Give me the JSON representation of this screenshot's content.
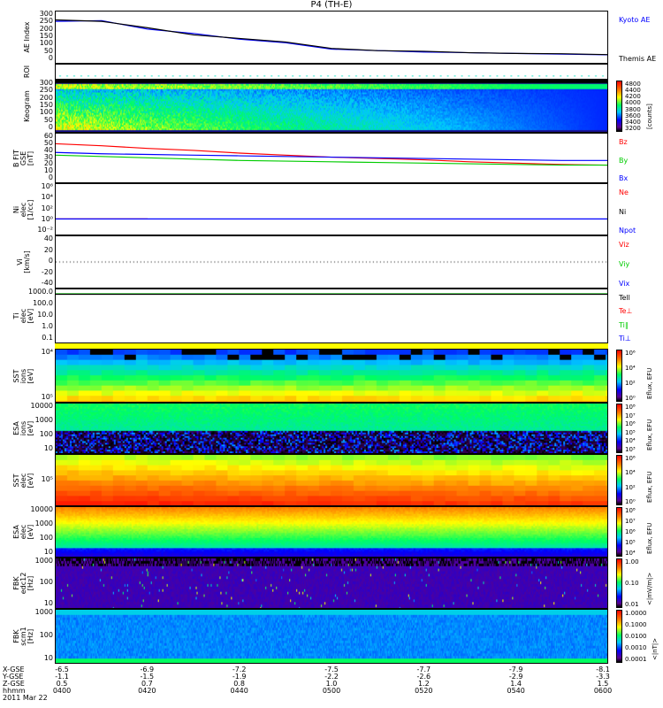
{
  "title": "P4 (TH-E)",
  "panels": [
    {
      "id": "ae",
      "label": [
        "AE Index"
      ],
      "yticks": [
        "300",
        "250",
        "200",
        "150",
        "100",
        "50",
        "0"
      ],
      "legend": [
        {
          "text": "Kyoto AE",
          "color": "#0000ff"
        },
        {
          "text": "Themis AE",
          "color": "#000000"
        }
      ]
    },
    {
      "id": "roi",
      "label": [
        "ROI"
      ],
      "yticks": [],
      "legend": []
    },
    {
      "id": "keo",
      "label": [
        "Keogram"
      ],
      "yticks": [
        "300",
        "250",
        "200",
        "150",
        "100",
        "50",
        "0"
      ],
      "legend": [],
      "colorbar": {
        "ticks": [
          "4800",
          "4400",
          "4200",
          "4000",
          "3800",
          "3600",
          "3400",
          "3200"
        ],
        "unit": "[counts]"
      }
    },
    {
      "id": "bfit",
      "label": [
        "B FIT",
        "GSE",
        "[nT]"
      ],
      "yticks": [
        "60",
        "50",
        "40",
        "30",
        "20",
        "10",
        "0"
      ],
      "legend": [
        {
          "text": "Bz",
          "color": "#ff0000"
        },
        {
          "text": "By",
          "color": "#00cc00"
        },
        {
          "text": "Bx",
          "color": "#0000ff"
        }
      ]
    },
    {
      "id": "ni",
      "label": [
        "Ni",
        "elec",
        "[1/cc]"
      ],
      "yticks": [
        "10⁶",
        "10⁴",
        "10²",
        "10⁰",
        "10⁻²"
      ],
      "legend": [
        {
          "text": "Ne",
          "color": "#ff0000"
        },
        {
          "text": "Ni",
          "color": "#000000"
        },
        {
          "text": "Npot",
          "color": "#0000ff"
        }
      ]
    },
    {
      "id": "vi",
      "label": [
        "Vi",
        "[km/s]"
      ],
      "yticks": [
        "40",
        "20",
        "0",
        "-20",
        "-40"
      ],
      "legend": [
        {
          "text": "Viz",
          "color": "#ff0000"
        },
        {
          "text": "Viy",
          "color": "#00cc00"
        },
        {
          "text": "Vix",
          "color": "#0000ff"
        }
      ]
    },
    {
      "id": "t",
      "label": [
        "Ti",
        "elec",
        "[eV]"
      ],
      "yticks": [
        "1000.0",
        "100.0",
        "10.0",
        "1.0",
        "0.1"
      ],
      "legend": [
        {
          "text": "Tell",
          "color": "#000000"
        },
        {
          "text": "Te⊥",
          "color": "#ff0000"
        },
        {
          "text": "Ti∥",
          "color": "#00cc00"
        },
        {
          "text": "Ti⊥",
          "color": "#0000ff"
        }
      ]
    },
    {
      "id": "ssti",
      "label": [
        "SST",
        "ions",
        "[eV]"
      ],
      "yticks": [
        "10⁴",
        "10⁵"
      ],
      "legend": [],
      "colorbar": {
        "ticks": [
          "10⁶",
          "10⁴",
          "10²",
          "10⁰"
        ],
        "unit": "Eflux, EFU"
      }
    },
    {
      "id": "esai",
      "label": [
        "ESA",
        "ions",
        "[eV]"
      ],
      "yticks": [
        "10000",
        "1000",
        "100",
        "10"
      ],
      "legend": [],
      "colorbar": {
        "ticks": [
          "10⁸",
          "10⁷",
          "10⁶",
          "10⁵",
          "10⁴",
          "10³"
        ],
        "unit": "Eflux, EFU"
      }
    },
    {
      "id": "sste",
      "label": [
        "SST",
        "elec",
        "[eV]"
      ],
      "yticks": [
        "10⁵"
      ],
      "legend": [],
      "colorbar": {
        "ticks": [
          "10⁶",
          "10⁴",
          "10²",
          "10⁰"
        ],
        "unit": "Eflux, EFU"
      }
    },
    {
      "id": "esae",
      "label": [
        "ESA",
        "elec",
        "[eV]"
      ],
      "yticks": [
        "10000",
        "1000",
        "100",
        "10"
      ],
      "legend": [],
      "colorbar": {
        "ticks": [
          "10⁸",
          "10⁷",
          "10⁶",
          "10⁵",
          "10⁴"
        ],
        "unit": "Eflux, EFU"
      }
    },
    {
      "id": "fbke",
      "label": [
        "FBK",
        "edc12",
        "[Hz]"
      ],
      "yticks": [
        "1000",
        "100",
        "10"
      ],
      "legend": [],
      "colorbar": {
        "ticks": [
          "1.00",
          "0.10",
          "0.01"
        ],
        "unit": "<|mV/m|>"
      }
    },
    {
      "id": "fbks",
      "label": [
        "FBK",
        "scm1",
        "[Hz]"
      ],
      "yticks": [
        "1000",
        "100",
        "10"
      ],
      "legend": [],
      "colorbar": {
        "ticks": [
          "1.0000",
          "0.1000",
          "0.0100",
          "0.0010",
          "0.0001"
        ],
        "unit": "<|nT|>"
      }
    }
  ],
  "xaxis": {
    "row_labels": [
      "X-GSE",
      "Y-GSE",
      "Z-GSE",
      "hhmm"
    ],
    "date": "2011 Mar 22",
    "ticks": [
      {
        "x": "-6.5",
        "y": "-1.1",
        "z": "0.5",
        "t": "0400"
      },
      {
        "x": "-6.9",
        "y": "-1.5",
        "z": "0.7",
        "t": "0420"
      },
      {
        "x": "-7.2",
        "y": "-1.9",
        "z": "0.8",
        "t": "0440"
      },
      {
        "x": "-7.5",
        "y": "-2.2",
        "z": "1.0",
        "t": "0500"
      },
      {
        "x": "-7.7",
        "y": "-2.6",
        "z": "1.2",
        "t": "0520"
      },
      {
        "x": "-7.9",
        "y": "-2.9",
        "z": "1.4",
        "t": "0540"
      },
      {
        "x": "-8.1",
        "y": "-3.3",
        "z": "1.5",
        "t": "0600"
      }
    ]
  },
  "chart_data": {
    "type": "line",
    "title": "P4 (TH-E)",
    "x_minutes_since_0400": [
      0,
      10,
      20,
      30,
      40,
      50,
      60,
      70,
      80,
      90,
      100,
      110,
      120
    ],
    "series": [
      {
        "panel": "ae",
        "name": "Kyoto AE",
        "color": "#0000ff",
        "range": [
          0,
          300
        ],
        "values": [
          255,
          260,
          200,
          170,
          130,
          105,
          60,
          50,
          40,
          35,
          30,
          25,
          20
        ]
      },
      {
        "panel": "ae",
        "name": "Themis AE",
        "color": "#000000",
        "range": [
          0,
          300
        ],
        "values": [
          265,
          255,
          210,
          160,
          135,
          110,
          65,
          50,
          45,
          35,
          30,
          28,
          22
        ]
      },
      {
        "panel": "bfit",
        "name": "Bz",
        "color": "#ff0000",
        "range": [
          0,
          60
        ],
        "values": [
          50,
          47,
          43,
          40,
          36,
          33,
          30,
          28,
          26,
          23,
          21,
          19,
          18
        ]
      },
      {
        "panel": "bfit",
        "name": "By",
        "color": "#00cc00",
        "range": [
          0,
          60
        ],
        "values": [
          33,
          31,
          29,
          27,
          25,
          24,
          23,
          22,
          21,
          20,
          19,
          18,
          18
        ]
      },
      {
        "panel": "bfit",
        "name": "Bx",
        "color": "#0000ff",
        "range": [
          0,
          60
        ],
        "values": [
          37,
          35,
          34,
          33,
          32,
          31,
          30,
          29,
          28,
          27,
          26,
          25,
          25
        ]
      },
      {
        "panel": "ni",
        "name": "Ne",
        "color": "#ff0000",
        "range": [
          -2,
          6
        ],
        "values": [
          0,
          0,
          0,
          null,
          null,
          null,
          null,
          null,
          null,
          null,
          null,
          null,
          null
        ]
      },
      {
        "panel": "ni",
        "name": "Npot",
        "color": "#0000ff",
        "range": [
          -2,
          6
        ],
        "values": [
          0,
          0,
          0,
          0,
          0,
          0,
          0,
          0,
          0,
          0,
          0,
          0,
          0
        ]
      },
      {
        "panel": "t",
        "name": "Ti∥",
        "color": "#00cc00",
        "range": [
          -1,
          3.6
        ],
        "values": [
          3.5,
          3.5,
          3.5,
          3.5,
          3.5,
          3.5,
          3.5,
          3.5,
          3.5,
          3.5,
          3.5,
          3.5,
          3.5
        ]
      },
      {
        "panel": "t",
        "name": "Tell",
        "color": "#000000",
        "range": [
          -1,
          3.6
        ],
        "values": [
          3.45,
          3.45,
          3.45,
          3.45,
          3.45,
          3.45,
          3.45,
          3.45,
          3.45,
          3.45,
          3.45,
          3.45,
          3.45
        ]
      }
    ]
  }
}
